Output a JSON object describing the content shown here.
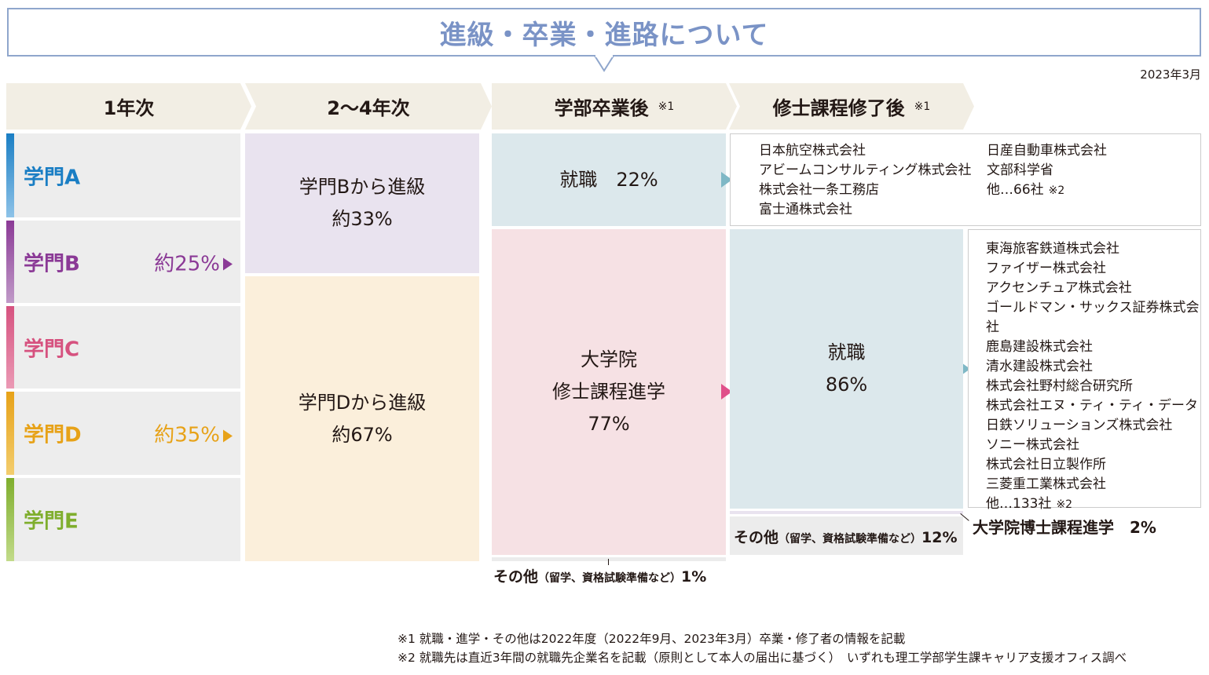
{
  "title": "進級・卒業・進路について",
  "date": "2023年3月",
  "headers": {
    "year1": "1年次",
    "year2to4": "2〜4年次",
    "after_bachelor": "学部卒業後",
    "after_bachelor_note": "※1",
    "after_master": "修士課程修了後",
    "after_master_note": "※1"
  },
  "departments": [
    {
      "name": "学門A",
      "pct": "",
      "color": "#1a7ec4"
    },
    {
      "name": "学門B",
      "pct": "約25%",
      "color": "#8b3a96"
    },
    {
      "name": "学門C",
      "pct": "",
      "color": "#d6527f"
    },
    {
      "name": "学門D",
      "pct": "約35%",
      "color": "#e7a218"
    },
    {
      "name": "学門E",
      "pct": "",
      "color": "#7fae2d"
    }
  ],
  "advance": {
    "b_label": "学門Bから進級",
    "b_pct": "約33%",
    "d_label": "学門Dから進級",
    "d_pct": "約67%"
  },
  "bachelor": {
    "employment": "就職　22%",
    "grad_line1": "大学院",
    "grad_line2": "修士課程進学",
    "grad_pct": "77%",
    "other_main": "その他",
    "other_sub": "（留学、資格試験準備など）",
    "other_pct": "1%"
  },
  "bachelor_companies": {
    "col1": [
      "日本航空株式会社",
      "アビームコンサルティング株式会社",
      "株式会社一条工務店",
      "富士通株式会社"
    ],
    "col2": [
      "日産自動車株式会社",
      "文部科学省",
      "他…66社"
    ],
    "col2_note": "※2"
  },
  "master": {
    "employment_label": "就職",
    "employment_pct": "86%",
    "other_main": "その他",
    "other_sub": "（留学、資格試験準備など）",
    "other_pct": "12%",
    "doctoral": "大学院博士課程進学　2%"
  },
  "master_companies": {
    "items": [
      "東海旅客鉄道株式会社",
      "ファイザー株式会社",
      "アクセンチュア株式会社",
      "ゴールドマン・サックス証券株式会社",
      "鹿島建設株式会社",
      "清水建設株式会社",
      "株式会社野村総合研究所",
      "株式会社エヌ・ティ・ティ・データ",
      "日鉄ソリューションズ株式会社",
      "ソニー株式会社",
      "株式会社日立製作所",
      "三菱重工業株式会社",
      "他…133社"
    ],
    "last_note": "※2"
  },
  "footnotes": {
    "note1": "※1 就職・進学・その他は2022年度（2022年9月、2023年3月）卒業・修了者の情報を記載",
    "note2": "※2 就職先は直近3年間の就職先企業名を記載（原則として本人の届出に基づく）　いずれも理工学部学生課キャリア支援オフィス調べ"
  },
  "colors": {
    "header_bg": "#f2eee4",
    "advance_b_bg": "#e9e3ef",
    "advance_d_bg": "#fbefdb",
    "employment_bg": "#dce8ec",
    "grad_bg": "#f6e1e4",
    "other_bg": "#ececec"
  }
}
